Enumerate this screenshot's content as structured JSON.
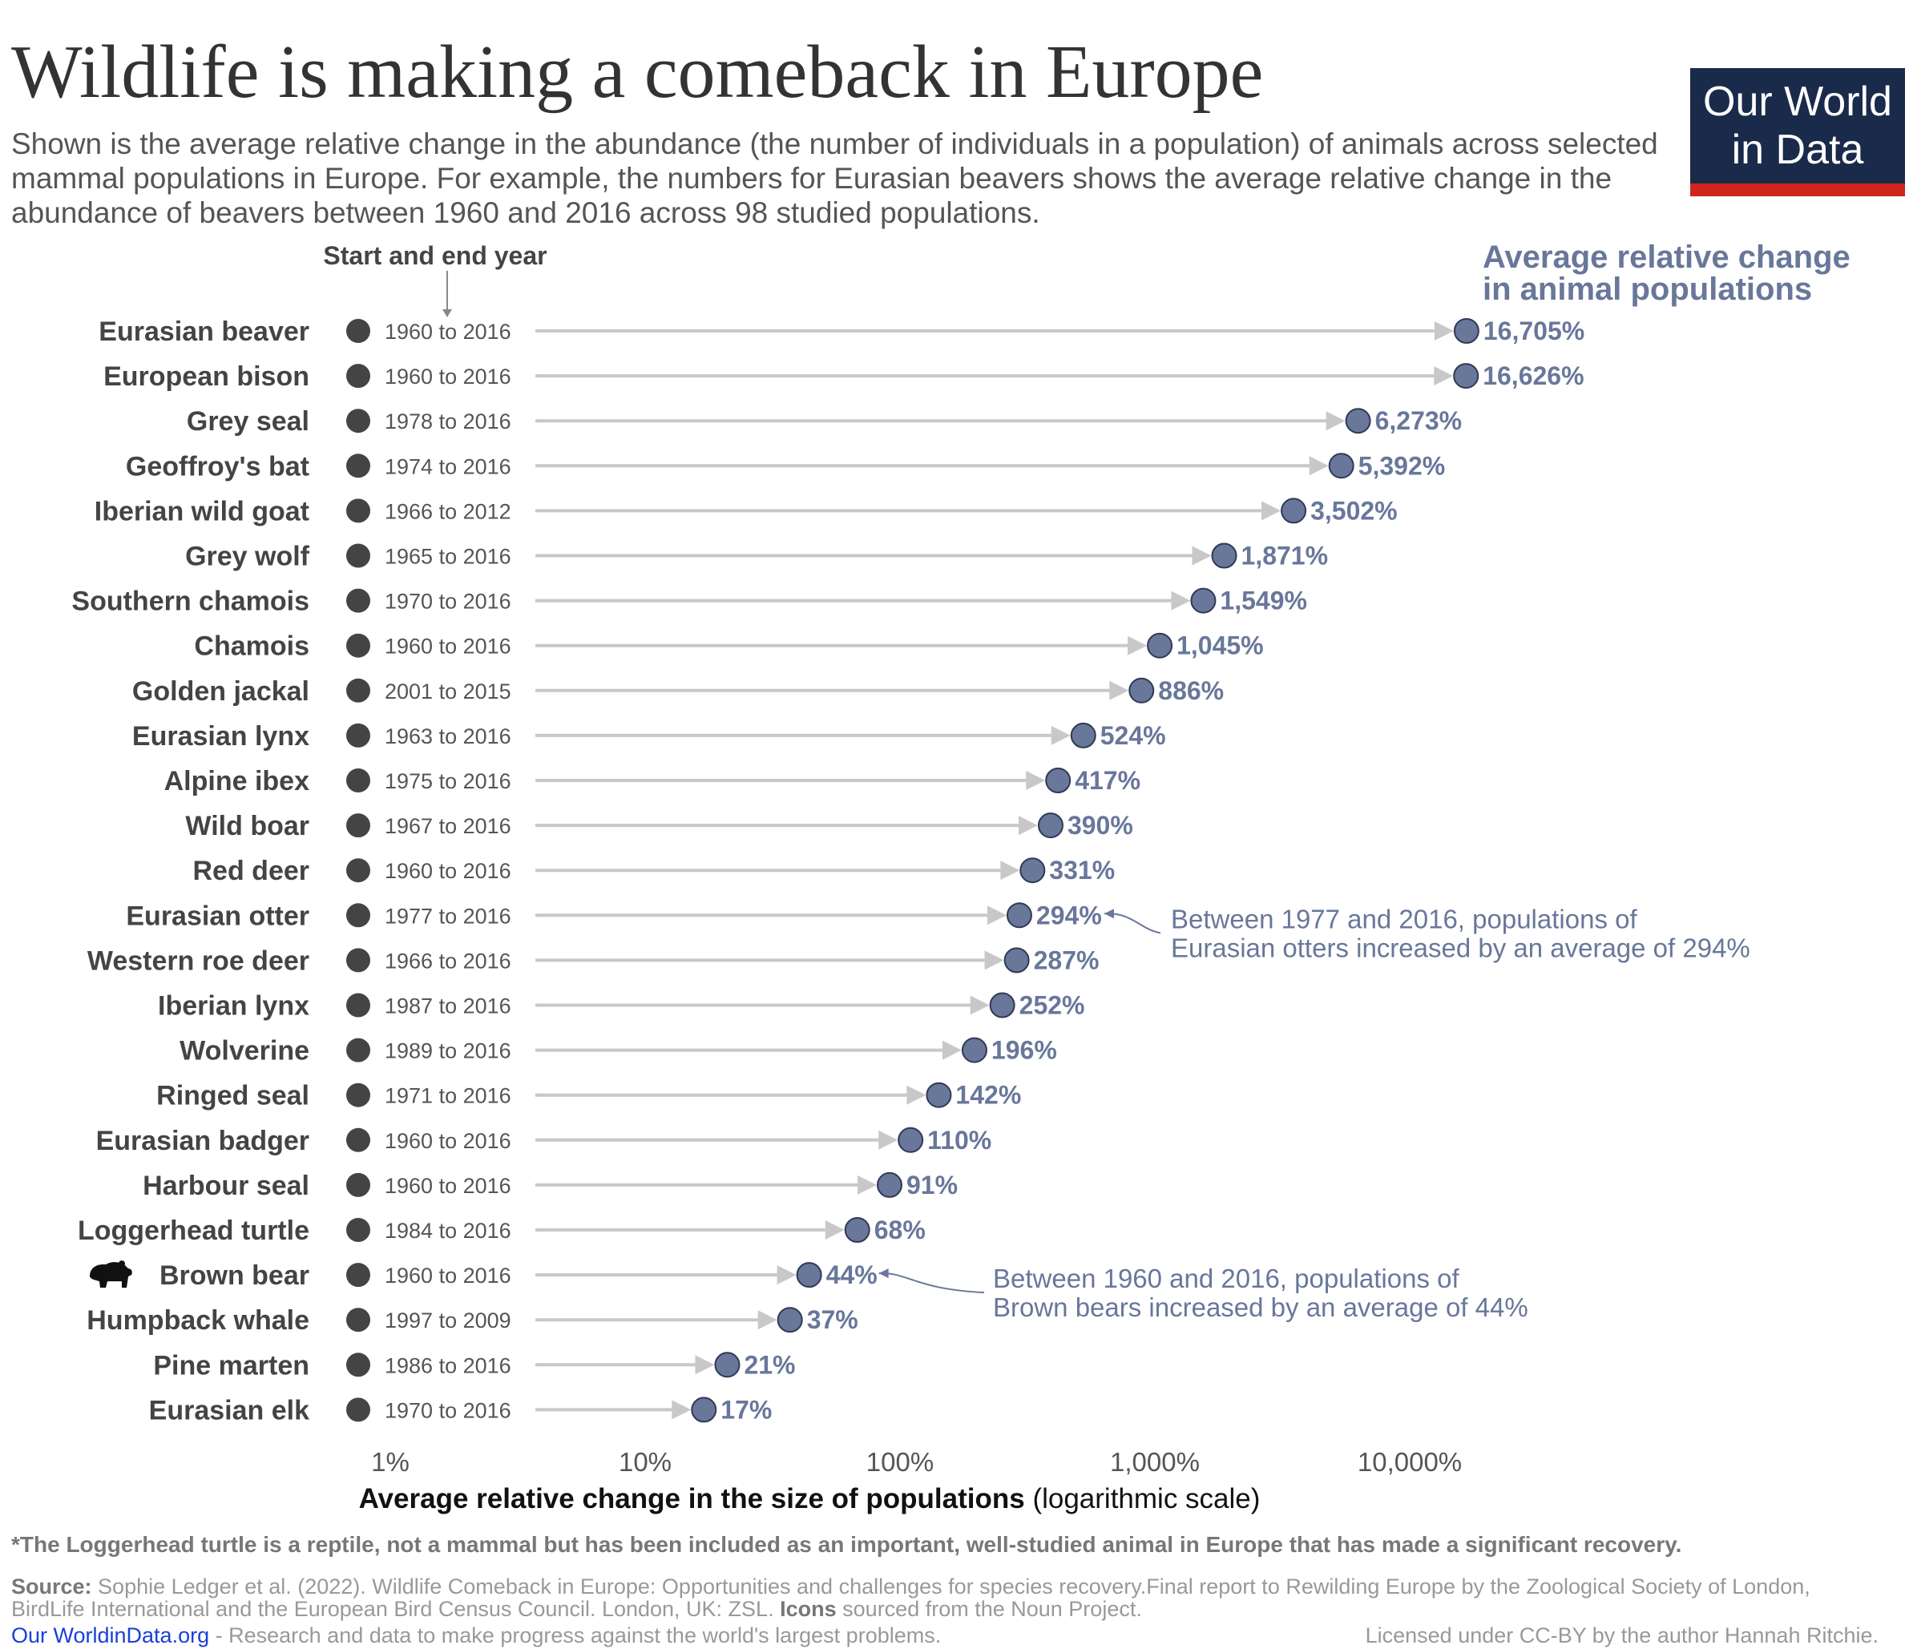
{
  "header": {
    "title": "Wildlife is making a comeback in Europe",
    "subtitle": "Shown is the average relative change in the abundance (the number of individuals in a population) of animals across selected mammal populations in Europe. For example, the numbers for Eurasian beavers shows the average relative change in the abundance of beavers between 1960 and 2016 across 98 studied populations."
  },
  "logo": {
    "line1": "Our World",
    "line2": "in Data",
    "bg_color": "#1a2a4a",
    "bar_color": "#ce261e"
  },
  "chart_data": {
    "type": "dot-arrow",
    "x_scale": "log",
    "xlim": [
      "1%",
      "10,000%"
    ],
    "x_ticks": [
      {
        "value": 1,
        "label": "1%"
      },
      {
        "value": 10,
        "label": "10%"
      },
      {
        "value": 100,
        "label": "100%"
      },
      {
        "value": 1000,
        "label": "1,000%"
      },
      {
        "value": 10000,
        "label": "10,000%"
      }
    ],
    "xlabel_bold": "Average relative change in the size of populations",
    "xlabel_normal": "(logarithmic scale)",
    "year_header": "Start and end year",
    "value_header_line1": "Average relative change",
    "value_header_line2": "in animal populations",
    "colors": {
      "point": "#68779a",
      "value_label": "#68779a",
      "arrow": "#c8c8c8",
      "start_dot": "#444444",
      "annotation": "#68779a"
    },
    "categories": [
      "Eurasian beaver",
      "European bison",
      "Grey seal",
      "Geoffroy's bat",
      "Iberian wild goat",
      "Grey wolf",
      "Southern chamois",
      "Chamois",
      "Golden jackal",
      "Eurasian lynx",
      "Alpine ibex",
      "Wild boar",
      "Red deer",
      "Eurasian otter",
      "Western roe deer",
      "Iberian lynx",
      "Wolverine",
      "Ringed seal",
      "Eurasian badger",
      "Harbour seal",
      "Loggerhead turtle",
      "Brown bear",
      "Humpback whale",
      "Pine marten",
      "Eurasian elk"
    ],
    "years": [
      "1960 to 2016",
      "1960 to 2016",
      "1978 to 2016",
      "1974 to 2016",
      "1966 to 2012",
      "1965 to 2016",
      "1970 to 2016",
      "1960 to 2016",
      "2001 to 2015",
      "1963 to 2016",
      "1975 to 2016",
      "1967 to 2016",
      "1960 to 2016",
      "1977 to 2016",
      "1966 to 2016",
      "1987 to 2016",
      "1989 to 2016",
      "1971 to 2016",
      "1960 to 2016",
      "1960 to 2016",
      "1984 to 2016",
      "1960 to 2016",
      "1997 to 2009",
      "1986 to 2016",
      "1970 to 2016"
    ],
    "values": [
      16705,
      16626,
      6273,
      5392,
      3502,
      1871,
      1549,
      1045,
      886,
      524,
      417,
      390,
      331,
      294,
      287,
      252,
      196,
      142,
      110,
      91,
      68,
      44,
      37,
      21,
      17
    ],
    "value_labels": [
      "16,705%",
      "16,626%",
      "6,273%",
      "5,392%",
      "3,502%",
      "1,871%",
      "1,549%",
      "1,045%",
      "886%",
      "524%",
      "417%",
      "390%",
      "331%",
      "294%",
      "287%",
      "252%",
      "196%",
      "142%",
      "110%",
      "91%",
      "68%",
      "44%",
      "37%",
      "21%",
      "17%"
    ],
    "icon_rows": [
      {
        "category": "Brown bear",
        "icon": "bear-icon"
      }
    ],
    "annotations": [
      {
        "category": "Eurasian otter",
        "line1": "Between 1977 and 2016, populations of",
        "line2": "Eurasian otters increased by an average of 294%"
      },
      {
        "category": "Brown bear",
        "line1": "Between 1960 and 2016, populations of",
        "line2": "Brown bears increased by an average of 44%"
      }
    ]
  },
  "footer": {
    "footnote": "*The Loggerhead turtle is a reptile, not a mammal but has been included as an important, well-studied animal in Europe that has made a significant recovery.",
    "source_label": "Source:",
    "source_text": "Sophie Ledger et al. (2022). Wildlife Comeback in Europe: Opportunities and challenges for species recovery.Final report to Rewilding Europe by the Zoological Society of London, BirdLife International and the European Bird Census Council. London, UK: ZSL.",
    "icons_label": "Icons",
    "icons_text": "sourced from the Noun Project.",
    "link_text": "Our WorldinData.org",
    "link_tail": "- Research and data to make progress against the world's largest problems.",
    "license": "Licensed under CC-BY by the author Hannah Ritchie."
  }
}
